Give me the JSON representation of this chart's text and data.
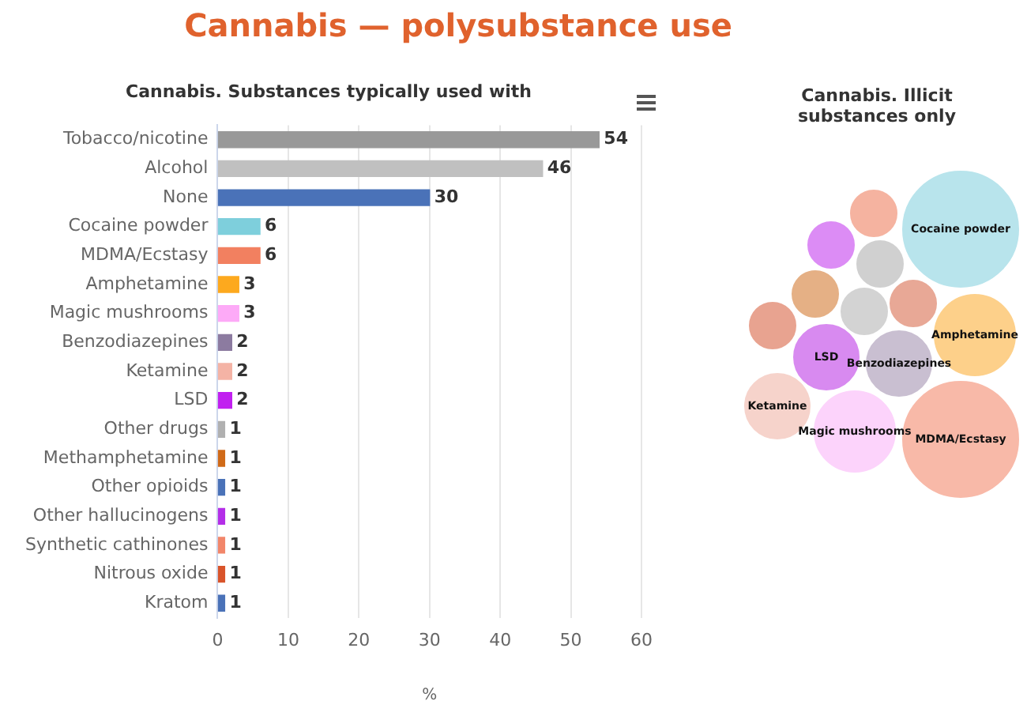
{
  "chart_data": [
    {
      "type": "bar",
      "orientation": "horizontal",
      "title": "Cannabis — polysubstance use",
      "subtitle": "Cannabis. Substances typically used with",
      "xlabel": "%",
      "categories": [
        "Tobacco/nicotine",
        "Alcohol",
        "None",
        "Cocaine powder",
        "MDMA/Ecstasy",
        "Amphetamine",
        "Magic mushrooms",
        "Benzodiazepines",
        "Ketamine",
        "LSD",
        "Other drugs",
        "Methamphetamine",
        "Other opioids",
        "Other hallucinogens",
        "Synthetic cathinones",
        "Nitrous oxide",
        "Kratom"
      ],
      "values": [
        54,
        46,
        30,
        6,
        6,
        3,
        3,
        2,
        2,
        2,
        1,
        1,
        1,
        1,
        1,
        1,
        1
      ],
      "colors": [
        "#999999",
        "#c0c0c0",
        "#4a72b8",
        "#7ecfdc",
        "#f28060",
        "#fda91e",
        "#fdaaf7",
        "#8c7ba0",
        "#f4b3a5",
        "#c11ff0",
        "#b0b0b0",
        "#d06a18",
        "#4a72b8",
        "#b42ee8",
        "#f2866a",
        "#d9542a",
        "#4a72b8"
      ],
      "xlim": [
        0,
        60
      ],
      "xticks": [
        0,
        10,
        20,
        30,
        40,
        50,
        60
      ],
      "grid": "x",
      "data_labels": true,
      "legend": false
    },
    {
      "type": "other",
      "title": "Cannabis. Illicit substances only",
      "categories": [
        "Cocaine powder",
        "MDMA/Ecstasy",
        "Amphetamine",
        "Magic mushrooms",
        "Benzodiazepines",
        "LSD",
        "Ketamine",
        null,
        null,
        null,
        null,
        null,
        null,
        null
      ],
      "colors": [
        "#b8e4ec",
        "#f8b9a8",
        "#fdd08a",
        "#fcd3fb",
        "#c9bfd1",
        "#d88af0",
        "#f6d3cb",
        "#f5b3a0",
        "#dc8cf5",
        "#d0d0d0",
        "#e5b085",
        "#d3d3d3",
        "#e8a896",
        "#e8a390"
      ]
    }
  ]
}
